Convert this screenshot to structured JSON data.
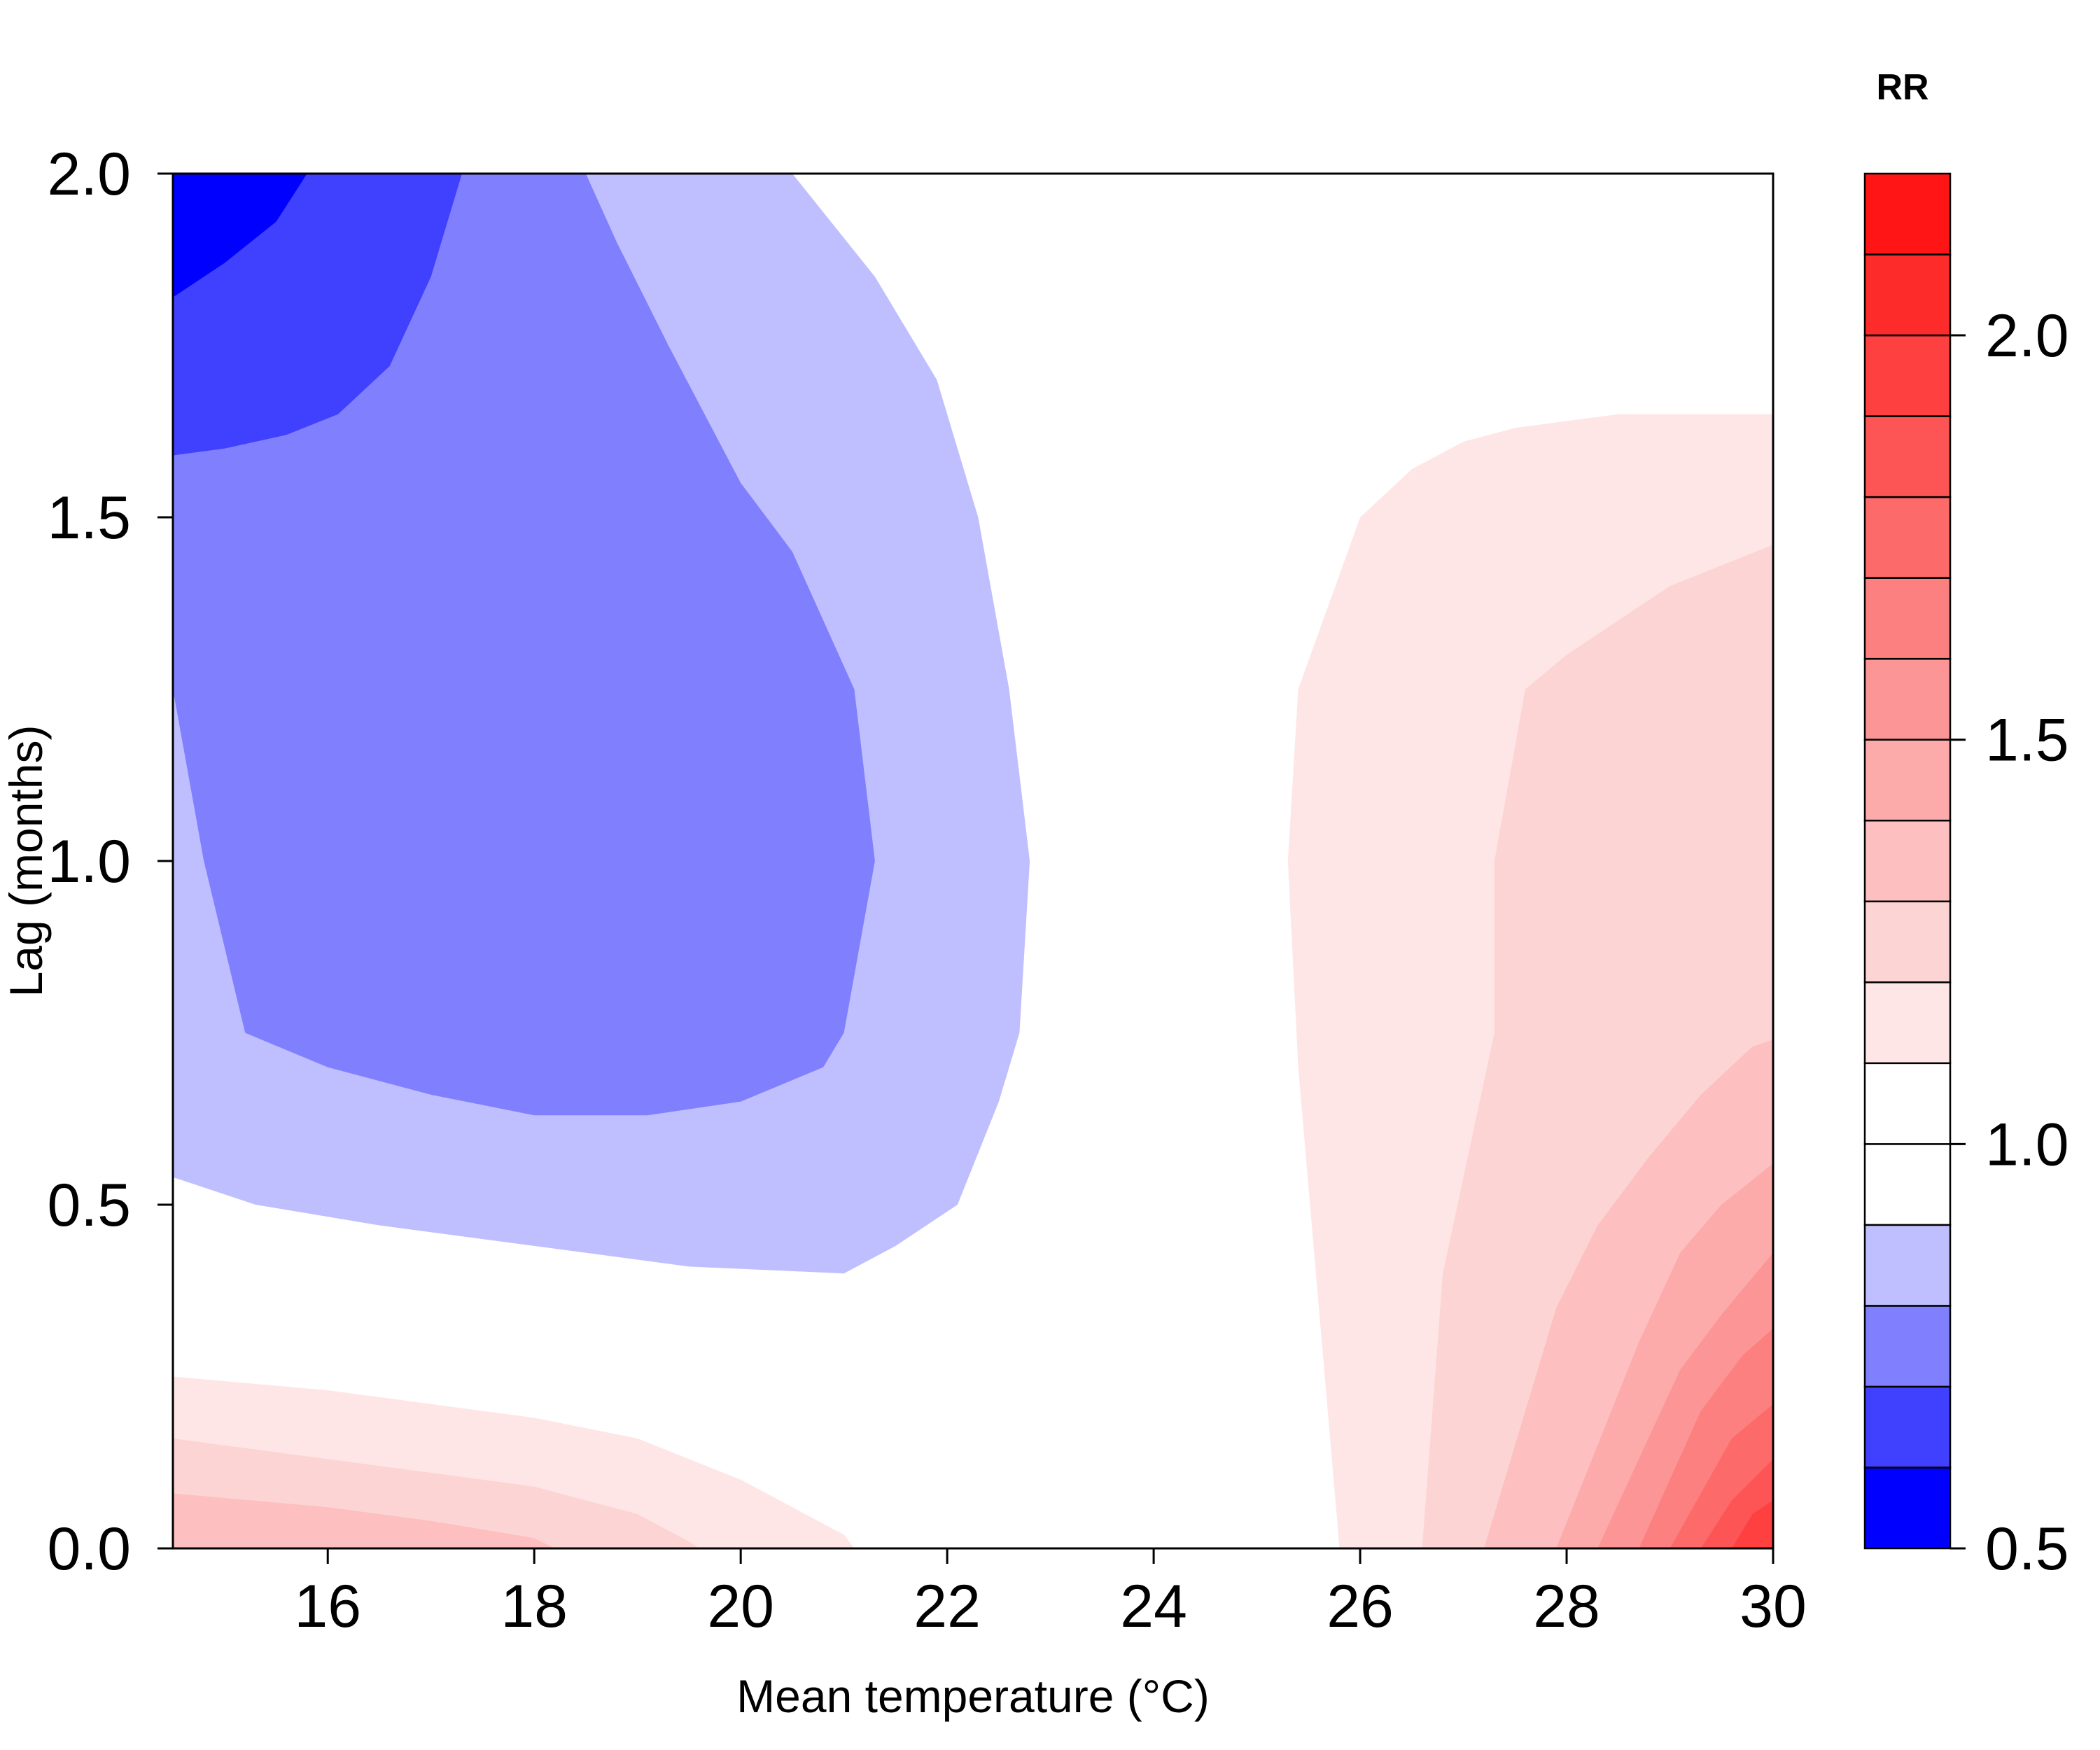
{
  "chart_data": {
    "type": "contour",
    "xlabel": "Mean temperature (°C)",
    "ylabel": "Lag (months)",
    "xlim": [
      14.5,
      30
    ],
    "ylim": [
      0,
      2
    ],
    "x_ticks": [
      "16",
      "18",
      "20",
      "22",
      "24",
      "26",
      "28",
      "30"
    ],
    "y_ticks": [
      "0.0",
      "0.5",
      "1.0",
      "1.5",
      "2.0"
    ],
    "legend": {
      "title": "RR",
      "placement": "right",
      "range": [
        0.5,
        2.2
      ],
      "tick_labels": [
        "0.5",
        "1.0",
        "1.5",
        "2.0"
      ],
      "levels": [
        {
          "from": 0.5,
          "to": 0.6,
          "color": "#0000ff"
        },
        {
          "from": 0.6,
          "to": 0.7,
          "color": "#4040ff"
        },
        {
          "from": 0.7,
          "to": 0.8,
          "color": "#8080ff"
        },
        {
          "from": 0.8,
          "to": 0.9,
          "color": "#bfbfff"
        },
        {
          "from": 0.9,
          "to": 1.0,
          "color": "#ffffff"
        },
        {
          "from": 1.0,
          "to": 1.1,
          "color": "#ffffff"
        },
        {
          "from": 1.1,
          "to": 1.2,
          "color": "#ffe6e6"
        },
        {
          "from": 1.2,
          "to": 1.3,
          "color": "#fdd4d4"
        },
        {
          "from": 1.3,
          "to": 1.4,
          "color": "#fdbfbf"
        },
        {
          "from": 1.4,
          "to": 1.5,
          "color": "#fcaaaa"
        },
        {
          "from": 1.5,
          "to": 1.6,
          "color": "#fc9595"
        },
        {
          "from": 1.6,
          "to": 1.7,
          "color": "#fc8080"
        },
        {
          "from": 1.7,
          "to": 1.8,
          "color": "#fd6a6a"
        },
        {
          "from": 1.8,
          "to": 1.9,
          "color": "#fd5555"
        },
        {
          "from": 1.9,
          "to": 2.0,
          "color": "#fe4040"
        },
        {
          "from": 2.0,
          "to": 2.1,
          "color": "#fe2b2b"
        },
        {
          "from": 2.1,
          "to": 2.2,
          "color": "#ff1515"
        }
      ]
    },
    "regions": [
      {
        "name": "rr-0.8-0.9",
        "color": "#bfbfff",
        "points": [
          [
            14.5,
            0.54
          ],
          [
            15.3,
            0.5
          ],
          [
            16.5,
            0.47
          ],
          [
            18,
            0.44
          ],
          [
            19.5,
            0.41
          ],
          [
            21,
            0.4
          ],
          [
            21.5,
            0.44
          ],
          [
            22.1,
            0.5
          ],
          [
            22.5,
            0.65
          ],
          [
            22.7,
            0.75
          ],
          [
            22.8,
            1.0
          ],
          [
            22.6,
            1.25
          ],
          [
            22.3,
            1.5
          ],
          [
            21.9,
            1.7
          ],
          [
            21.3,
            1.85
          ],
          [
            20.5,
            2.0
          ],
          [
            14.5,
            2.0
          ]
        ]
      },
      {
        "name": "rr-0.7-0.8",
        "color": "#8080ff",
        "points": [
          [
            14.5,
            1.25
          ],
          [
            14.8,
            1.0
          ],
          [
            15.2,
            0.75
          ],
          [
            16,
            0.7
          ],
          [
            17,
            0.66
          ],
          [
            18,
            0.63
          ],
          [
            19.1,
            0.63
          ],
          [
            20,
            0.65
          ],
          [
            20.8,
            0.7
          ],
          [
            21.0,
            0.75
          ],
          [
            21.3,
            1.0
          ],
          [
            21.1,
            1.25
          ],
          [
            20.5,
            1.45
          ],
          [
            20,
            1.55
          ],
          [
            19.3,
            1.75
          ],
          [
            18.8,
            1.9
          ],
          [
            18.5,
            2.0
          ],
          [
            14.5,
            2.0
          ]
        ]
      },
      {
        "name": "rr-0.6-0.7",
        "color": "#4040ff",
        "points": [
          [
            14.5,
            1.59
          ],
          [
            15,
            1.6
          ],
          [
            15.6,
            1.62
          ],
          [
            16.1,
            1.65
          ],
          [
            16.6,
            1.72
          ],
          [
            17,
            1.85
          ],
          [
            17.3,
            2.0
          ],
          [
            14.5,
            2.0
          ]
        ]
      },
      {
        "name": "rr-0.5-0.6",
        "color": "#0000ff",
        "points": [
          [
            14.5,
            1.82
          ],
          [
            15,
            1.87
          ],
          [
            15.5,
            1.93
          ],
          [
            15.8,
            2.0
          ],
          [
            14.5,
            2.0
          ]
        ]
      },
      {
        "name": "rr-1.1-1.2-low",
        "color": "#ffe6e6",
        "points": [
          [
            14.5,
            0
          ],
          [
            14.5,
            0.25
          ],
          [
            16,
            0.23
          ],
          [
            18,
            0.19
          ],
          [
            19,
            0.16
          ],
          [
            20,
            0.1
          ],
          [
            21,
            0.02
          ],
          [
            21.1,
            0
          ],
          [
            14.5,
            0
          ]
        ]
      },
      {
        "name": "rr-1.2-1.3-low",
        "color": "#fdd4d4",
        "points": [
          [
            14.5,
            0
          ],
          [
            14.5,
            0.16
          ],
          [
            16,
            0.13
          ],
          [
            18,
            0.09
          ],
          [
            19,
            0.05
          ],
          [
            19.5,
            0.01
          ],
          [
            19.6,
            0
          ],
          [
            14.5,
            0
          ]
        ]
      },
      {
        "name": "rr-1.3-1.4-low",
        "color": "#fdbfbf",
        "points": [
          [
            14.5,
            0
          ],
          [
            14.5,
            0.08
          ],
          [
            16,
            0.06
          ],
          [
            17,
            0.04
          ],
          [
            18,
            0.015
          ],
          [
            18.2,
            0
          ],
          [
            14.5,
            0
          ]
        ]
      },
      {
        "name": "rr-1.1-1.2-high",
        "color": "#ffe6e6",
        "points": [
          [
            25.8,
            0
          ],
          [
            25.4,
            0.7
          ],
          [
            25.3,
            1.0
          ],
          [
            25.4,
            1.25
          ],
          [
            26,
            1.5
          ],
          [
            26.5,
            1.57
          ],
          [
            27,
            1.61
          ],
          [
            27.5,
            1.63
          ],
          [
            28.5,
            1.65
          ],
          [
            30,
            1.65
          ],
          [
            30,
            0
          ]
        ]
      },
      {
        "name": "rr-1.2-1.3-high",
        "color": "#fdd4d4",
        "points": [
          [
            26.6,
            0
          ],
          [
            26.8,
            0.4
          ],
          [
            27.3,
            0.75
          ],
          [
            27.3,
            1.0
          ],
          [
            27.6,
            1.25
          ],
          [
            28,
            1.3
          ],
          [
            28.5,
            1.35
          ],
          [
            29,
            1.4
          ],
          [
            30,
            1.46
          ],
          [
            30,
            0
          ]
        ]
      },
      {
        "name": "rr-1.3-1.4-high",
        "color": "#fdbfbf",
        "points": [
          [
            27.2,
            0
          ],
          [
            27.6,
            0.2
          ],
          [
            27.9,
            0.35
          ],
          [
            28.3,
            0.47
          ],
          [
            28.8,
            0.57
          ],
          [
            29.3,
            0.66
          ],
          [
            29.8,
            0.73
          ],
          [
            30,
            0.74
          ],
          [
            30,
            0
          ]
        ]
      },
      {
        "name": "rr-1.4-1.5-high",
        "color": "#fcaaaa",
        "points": [
          [
            27.9,
            0
          ],
          [
            28.3,
            0.15
          ],
          [
            28.7,
            0.3
          ],
          [
            29.1,
            0.43
          ],
          [
            29.5,
            0.5
          ],
          [
            30,
            0.56
          ],
          [
            30,
            0
          ]
        ]
      },
      {
        "name": "rr-1.5-1.6-high",
        "color": "#fc9595",
        "points": [
          [
            28.3,
            0
          ],
          [
            28.7,
            0.13
          ],
          [
            29.1,
            0.26
          ],
          [
            29.5,
            0.34
          ],
          [
            30,
            0.43
          ],
          [
            30,
            0
          ]
        ]
      },
      {
        "name": "rr-1.6-1.7-high",
        "color": "#fc8080",
        "points": [
          [
            28.7,
            0
          ],
          [
            29,
            0.1
          ],
          [
            29.3,
            0.2
          ],
          [
            29.7,
            0.28
          ],
          [
            30,
            0.32
          ],
          [
            30,
            0
          ]
        ]
      },
      {
        "name": "rr-1.7-1.8-high",
        "color": "#fd6a6a",
        "points": [
          [
            29.0,
            0
          ],
          [
            29.3,
            0.08
          ],
          [
            29.6,
            0.16
          ],
          [
            30,
            0.21
          ],
          [
            30,
            0
          ]
        ]
      },
      {
        "name": "rr-1.8-1.9-high",
        "color": "#fd5555",
        "points": [
          [
            29.3,
            0
          ],
          [
            29.6,
            0.07
          ],
          [
            30,
            0.13
          ],
          [
            30,
            0
          ]
        ]
      },
      {
        "name": "rr-1.9-2.0-high",
        "color": "#fe4040",
        "points": [
          [
            29.6,
            0
          ],
          [
            29.8,
            0.05
          ],
          [
            30,
            0.07
          ],
          [
            30,
            0
          ]
        ]
      }
    ]
  }
}
